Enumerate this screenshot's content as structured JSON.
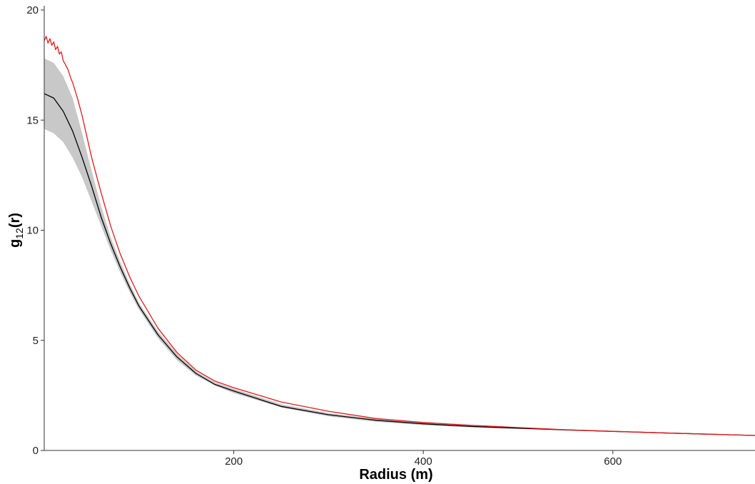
{
  "chart_data": {
    "type": "line",
    "title": "",
    "xlabel": "Radius (m)",
    "ylabel": {
      "main": "g",
      "subscript": "12",
      "suffix": "(r)"
    },
    "xlim": [
      0,
      750
    ],
    "ylim": [
      0,
      20
    ],
    "x_ticks": [
      {
        "value": 200,
        "label": "200"
      },
      {
        "value": 400,
        "label": "400"
      },
      {
        "value": 600,
        "label": "600"
      }
    ],
    "y_ticks": [
      {
        "value": 0,
        "label": "0"
      },
      {
        "value": 5,
        "label": "5"
      },
      {
        "value": 10,
        "label": "10"
      },
      {
        "value": 15,
        "label": "15"
      },
      {
        "value": 20,
        "label": "20"
      }
    ],
    "grid": false,
    "legend": "none",
    "envelope": {
      "color": "#c8c8c8",
      "x": [
        0,
        10,
        20,
        30,
        40,
        50,
        60,
        70,
        80,
        90,
        100,
        120,
        140,
        160,
        180,
        200,
        250,
        300,
        350,
        400,
        450,
        500,
        550,
        600,
        650,
        700,
        750
      ],
      "lower": [
        14.6,
        14.4,
        14.0,
        13.3,
        12.4,
        11.3,
        10.2,
        9.1,
        8.1,
        7.2,
        6.4,
        5.1,
        4.1,
        3.4,
        2.95,
        2.6,
        1.95,
        1.55,
        1.3,
        1.15,
        1.05,
        0.98,
        0.91,
        0.85,
        0.79,
        0.73,
        0.67
      ],
      "upper": [
        17.8,
        17.6,
        17.0,
        16.0,
        14.4,
        12.7,
        11.1,
        9.7,
        8.6,
        7.6,
        6.7,
        5.4,
        4.4,
        3.6,
        3.1,
        2.8,
        2.1,
        1.7,
        1.43,
        1.27,
        1.13,
        1.04,
        0.96,
        0.88,
        0.81,
        0.75,
        0.69
      ]
    },
    "series": [
      {
        "color": "#000000",
        "x": [
          0,
          10,
          20,
          30,
          40,
          50,
          60,
          70,
          80,
          90,
          100,
          120,
          140,
          160,
          180,
          200,
          250,
          300,
          350,
          400,
          450,
          500,
          550,
          600,
          650,
          700,
          750
        ],
        "y": [
          16.2,
          16.0,
          15.4,
          14.5,
          13.3,
          12.0,
          10.6,
          9.4,
          8.35,
          7.4,
          6.55,
          5.25,
          4.25,
          3.5,
          3.0,
          2.7,
          2.0,
          1.62,
          1.37,
          1.21,
          1.09,
          1.01,
          0.935,
          0.865,
          0.8,
          0.74,
          0.68
        ]
      },
      {
        "color": "#e31a1c",
        "x": [
          0,
          2,
          4,
          6,
          8,
          10,
          12,
          14,
          16,
          18,
          20,
          22,
          25,
          28,
          30,
          35,
          40,
          50,
          60,
          70,
          80,
          90,
          100,
          120,
          140,
          160,
          180,
          200,
          250,
          300,
          350,
          400,
          450,
          500,
          550,
          600,
          650,
          700,
          750
        ],
        "y": [
          18.6,
          18.8,
          18.5,
          18.7,
          18.4,
          18.55,
          18.2,
          18.35,
          18.0,
          18.1,
          17.7,
          17.55,
          17.3,
          16.9,
          16.7,
          16.0,
          15.2,
          13.3,
          11.7,
          10.2,
          8.95,
          7.9,
          7.0,
          5.55,
          4.45,
          3.65,
          3.15,
          2.85,
          2.2,
          1.78,
          1.45,
          1.27,
          1.14,
          1.04,
          0.94,
          0.87,
          0.8,
          0.74,
          0.68
        ]
      }
    ]
  }
}
